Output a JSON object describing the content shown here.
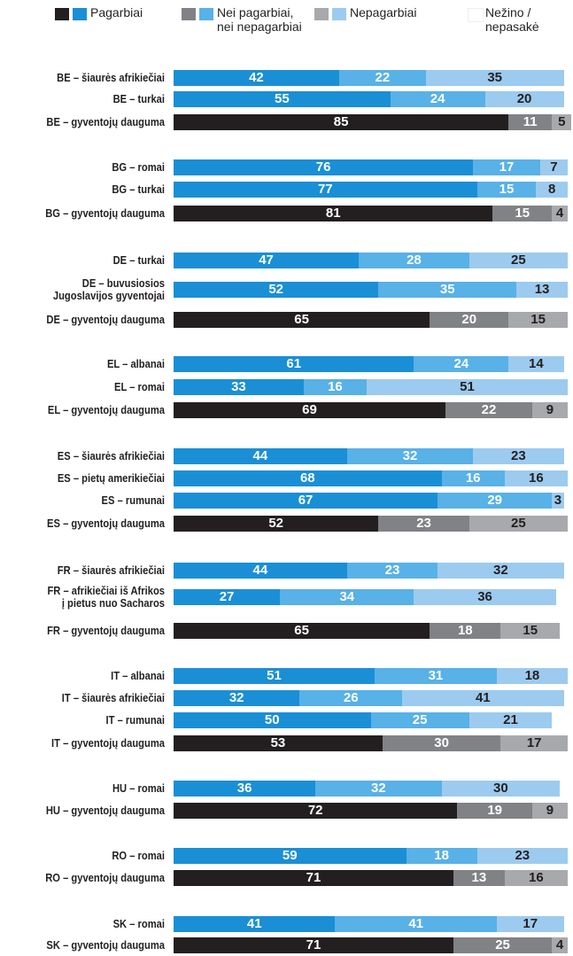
{
  "chart_data": {
    "type": "bar",
    "orientation": "horizontal",
    "stacked": true,
    "xlim": [
      0,
      100
    ],
    "categories": [
      "BE – šiaurės afrikiečiai",
      "BE – turkai",
      "BE – gyventojų dauguma",
      "BG – romai",
      "BG – turkai",
      "BG – gyventojų dauguma",
      "DE – turkai",
      "DE – buvusiosios\nJugoslavijos gyventojai",
      "DE – gyventojų dauguma",
      "EL – albanai",
      "EL – romai",
      "EL – gyventojų dauguma",
      "ES – šiaurės afrikiečiai",
      "ES – pietų amerikiečiai",
      "ES – rumunai",
      "ES – gyventojų dauguma",
      "FR – šiaurės afrikiečiai",
      "FR – afrikiečiai iš Afrikos\nį pietus nuo Sacharos",
      "FR – gyventojų dauguma",
      "IT – albanai",
      "IT – šiaurės afrikiečiai",
      "IT – rumunai",
      "IT – gyventojų dauguma",
      "HU – romai",
      "HU – gyventojų dauguma",
      "RO – romai",
      "RO – gyventojų dauguma",
      "SK – romai",
      "SK – gyventojų dauguma"
    ],
    "palette": [
      1,
      1,
      0,
      1,
      1,
      0,
      1,
      1,
      0,
      1,
      1,
      0,
      1,
      1,
      1,
      0,
      1,
      1,
      0,
      1,
      1,
      1,
      0,
      1,
      0,
      1,
      0,
      1,
      0
    ],
    "series": [
      {
        "name": "Pagarbiai",
        "colors": [
          "#231f20",
          "#1a8fd6"
        ],
        "show_labels": true,
        "values": [
          42,
          55,
          85,
          76,
          77,
          81,
          47,
          52,
          65,
          61,
          33,
          69,
          44,
          68,
          67,
          52,
          44,
          27,
          65,
          51,
          32,
          50,
          53,
          36,
          72,
          59,
          71,
          41,
          71
        ]
      },
      {
        "name": "Nei pagarbiai,\nnei nepagarbiai",
        "colors": [
          "#808285",
          "#58b1e7"
        ],
        "show_labels": true,
        "values": [
          22,
          24,
          11,
          17,
          15,
          15,
          28,
          35,
          20,
          24,
          16,
          22,
          32,
          16,
          29,
          23,
          23,
          34,
          18,
          31,
          26,
          25,
          30,
          32,
          19,
          18,
          13,
          41,
          25
        ]
      },
      {
        "name": "Nepagarbiai",
        "colors": [
          "#a7a9ac",
          "#9ccbef"
        ],
        "show_labels": true,
        "values": [
          35,
          20,
          5,
          7,
          8,
          4,
          25,
          13,
          15,
          14,
          51,
          9,
          23,
          16,
          3,
          25,
          32,
          36,
          15,
          18,
          41,
          21,
          17,
          30,
          9,
          23,
          16,
          17,
          4
        ]
      },
      {
        "name": "Nežino /\nnepasakė",
        "colors": [
          "#ffffff",
          "#ffffff"
        ],
        "show_labels": false,
        "values": [
          1,
          1,
          0,
          0,
          0,
          0,
          0,
          0,
          0,
          1,
          0,
          0,
          1,
          0,
          1,
          0,
          1,
          3,
          2,
          0,
          1,
          4,
          0,
          2,
          0,
          0,
          0,
          1,
          0
        ]
      }
    ]
  }
}
